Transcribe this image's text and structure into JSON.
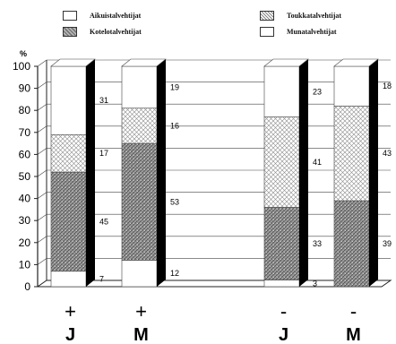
{
  "legend": [
    {
      "label": "Aikuistalvehtijat",
      "pattern": "white"
    },
    {
      "label": "Toukkatalvehtijat",
      "pattern": "light"
    },
    {
      "label": "Kotelotalvehtijat",
      "pattern": "dark"
    },
    {
      "label": "Munatalvehtijat",
      "pattern": "white"
    }
  ],
  "chart_data": {
    "type": "bar",
    "stacked": true,
    "ylabel": "%",
    "ylim": [
      0,
      100
    ],
    "yticks": [
      0,
      10,
      20,
      30,
      40,
      50,
      60,
      70,
      80,
      90,
      100
    ],
    "grid": true,
    "categories": [
      {
        "sign": "+",
        "letter": "J"
      },
      {
        "sign": "+",
        "letter": "M"
      },
      {
        "sign": "-",
        "letter": "J"
      },
      {
        "sign": "-",
        "letter": "M"
      }
    ],
    "series": [
      {
        "name": "Munatalvehtijat",
        "pattern": "white",
        "values": [
          7,
          12,
          3,
          null
        ]
      },
      {
        "name": "Kotelotalvehtijat",
        "pattern": "dark",
        "values": [
          45,
          53,
          33,
          39
        ]
      },
      {
        "name": "Toukkatalvehtijat",
        "pattern": "light",
        "values": [
          17,
          16,
          41,
          43
        ]
      },
      {
        "name": "Aikuistalvehtijat",
        "pattern": "white",
        "values": [
          31,
          19,
          23,
          18
        ]
      }
    ]
  },
  "colors": {
    "dark_pattern": "#8a8a8a",
    "light_pattern": "#c9c9c9",
    "side": "#000000"
  }
}
